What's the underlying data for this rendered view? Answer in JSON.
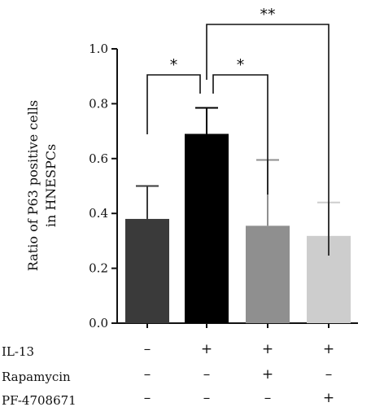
{
  "chart_data": {
    "type": "bar",
    "ylabel_line1": "Ratio of P63 positive cells",
    "ylabel_line2": "in HNESPCs",
    "ylim": [
      0,
      1.0
    ],
    "yticks": [
      "0.0",
      "0.2",
      "0.4",
      "0.6",
      "0.8",
      "1.0"
    ],
    "ytick_values": [
      0,
      0.2,
      0.4,
      0.6,
      0.8,
      1.0
    ],
    "values": [
      0.38,
      0.69,
      0.355,
      0.318
    ],
    "errors": [
      0.12,
      0.095,
      0.24,
      0.122
    ],
    "colors": [
      "#3a3a3a",
      "#000000",
      "#8f8f8f",
      "#cdcdcd"
    ],
    "conditions": [
      {
        "name": "IL-13",
        "values": [
          "–",
          "+",
          "+",
          "+"
        ]
      },
      {
        "name": "Rapamycin",
        "values": [
          "–",
          "–",
          "+",
          "–"
        ]
      },
      {
        "name": "PF-4708671",
        "values": [
          "–",
          "–",
          "–",
          "+"
        ]
      }
    ],
    "significance": [
      {
        "from": 0,
        "to": 1,
        "label": "*"
      },
      {
        "from": 1,
        "to": 2,
        "label": "*"
      },
      {
        "from": 1,
        "to": 3,
        "label": "**"
      }
    ],
    "grid": false,
    "legend": "none"
  }
}
